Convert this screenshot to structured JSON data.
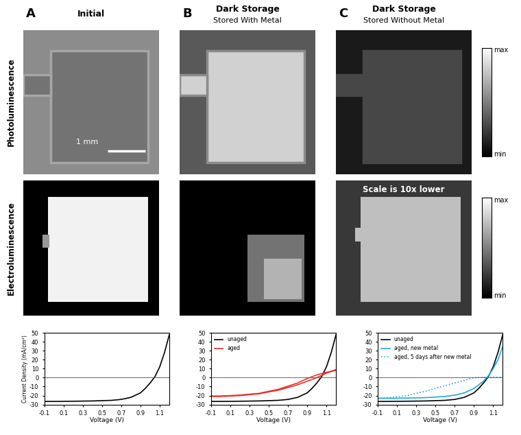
{
  "columns": [
    {
      "letter": "A",
      "title": "Initial"
    },
    {
      "letter": "B",
      "title": "Dark Storage",
      "subtitle": "Stored With Metal"
    },
    {
      "letter": "C",
      "title": "Dark Storage",
      "subtitle": "Stored Without Metal"
    }
  ],
  "rows": [
    "Photoluminescence",
    "Electroluminescence"
  ],
  "colorbar": [
    "max",
    "min"
  ],
  "scale_bar": "1 mm",
  "note": "Scale is 10x lower",
  "chart_data": [
    {
      "type": "line",
      "x_label": "Voltage (V)",
      "y_label": "Current Density (mA/cm²)",
      "xlim": [
        -0.1,
        1.2
      ],
      "xticks": [
        -0.1,
        0.1,
        0.3,
        0.5,
        0.7,
        0.9,
        1.1
      ],
      "ylim": [
        -30,
        50
      ],
      "yticks": [
        -30,
        -20,
        -10,
        0,
        10,
        20,
        30,
        40,
        50
      ],
      "grid": false,
      "series": [
        {
          "color": "#000000",
          "line_style": "solid",
          "x": [
            -0.1,
            0.0,
            0.2,
            0.4,
            0.6,
            0.7,
            0.8,
            0.9,
            0.95,
            1.0,
            1.05,
            1.1,
            1.15,
            1.2
          ],
          "values": [
            -26.5,
            -26.5,
            -26.3,
            -26.0,
            -25.3,
            -24.3,
            -22.0,
            -17.0,
            -12.0,
            -6.0,
            1.0,
            12.0,
            28.0,
            48.0
          ]
        }
      ]
    },
    {
      "type": "line",
      "x_label": "Voltage (V)",
      "xlim": [
        -0.1,
        1.2
      ],
      "xticks": [
        -0.1,
        0.1,
        0.3,
        0.5,
        0.7,
        0.9,
        1.1
      ],
      "ylim": [
        -30,
        50
      ],
      "yticks": [
        -30,
        -20,
        -10,
        0,
        10,
        20,
        30,
        40,
        50
      ],
      "grid": false,
      "legend": "upper left",
      "series": [
        {
          "name": "unaged",
          "color": "#000000",
          "line_style": "solid",
          "x": [
            -0.1,
            0.0,
            0.2,
            0.4,
            0.6,
            0.7,
            0.8,
            0.9,
            0.95,
            1.0,
            1.05,
            1.1,
            1.15,
            1.2
          ],
          "values": [
            -26.5,
            -26.5,
            -26.3,
            -26.0,
            -25.3,
            -24.3,
            -22.0,
            -17.0,
            -12.0,
            -6.0,
            1.0,
            12.0,
            28.0,
            48.0
          ]
        },
        {
          "name": "aged",
          "color": "#e8312a",
          "line_style": "solid",
          "x": [
            -0.1,
            0.0,
            0.2,
            0.4,
            0.6,
            0.8,
            0.9,
            1.0,
            1.1,
            1.2,
            1.2,
            1.1,
            1.0,
            0.9,
            0.8,
            0.6,
            0.4,
            0.2,
            0.0,
            -0.1
          ],
          "values": [
            -20.5,
            -20.5,
            -19.5,
            -17.5,
            -13.0,
            -6.0,
            -1.0,
            3.0,
            6.0,
            8.0,
            9.0,
            5.0,
            0.0,
            -4.0,
            -8.0,
            -14.0,
            -18.0,
            -20.0,
            -21.0,
            -21.0
          ]
        }
      ]
    },
    {
      "type": "line",
      "x_label": "Voltage (V)",
      "xlim": [
        -0.1,
        1.2
      ],
      "xticks": [
        -0.1,
        0.1,
        0.3,
        0.5,
        0.7,
        0.9,
        1.1
      ],
      "ylim": [
        -30,
        50
      ],
      "yticks": [
        -30,
        -20,
        -10,
        0,
        10,
        20,
        30,
        40,
        50
      ],
      "grid": false,
      "legend": "upper left",
      "series": [
        {
          "name": "unaged",
          "color": "#000000",
          "line_style": "solid",
          "x": [
            -0.1,
            0.0,
            0.2,
            0.4,
            0.6,
            0.7,
            0.8,
            0.9,
            0.95,
            1.0,
            1.05,
            1.1,
            1.15,
            1.2
          ],
          "values": [
            -26.5,
            -26.5,
            -26.3,
            -26.0,
            -25.3,
            -24.3,
            -22.0,
            -17.0,
            -12.0,
            -6.0,
            1.0,
            12.0,
            28.0,
            48.0
          ]
        },
        {
          "name": "aged, new metal",
          "color": "#1ea7e4",
          "line_style": "solid",
          "x": [
            -0.1,
            0.0,
            0.2,
            0.4,
            0.6,
            0.7,
            0.8,
            0.9,
            1.0,
            1.05,
            1.1,
            1.15,
            1.2
          ],
          "values": [
            -23.0,
            -23.0,
            -22.8,
            -22.3,
            -21.0,
            -19.5,
            -17.0,
            -12.0,
            -4.0,
            2.0,
            10.0,
            20.0,
            35.0
          ]
        },
        {
          "name": "aged, 5 days after new metal",
          "color": "#1ea7e4",
          "line_style": "dotted",
          "x": [
            -0.1,
            0.0,
            0.2,
            0.4,
            0.6,
            0.7,
            0.8,
            0.9,
            1.0,
            1.1,
            1.2
          ],
          "values": [
            -23.0,
            -22.5,
            -20.0,
            -15.0,
            -9.0,
            -6.0,
            -3.0,
            0.0,
            0.5,
            0.5,
            0.5
          ]
        }
      ]
    }
  ]
}
